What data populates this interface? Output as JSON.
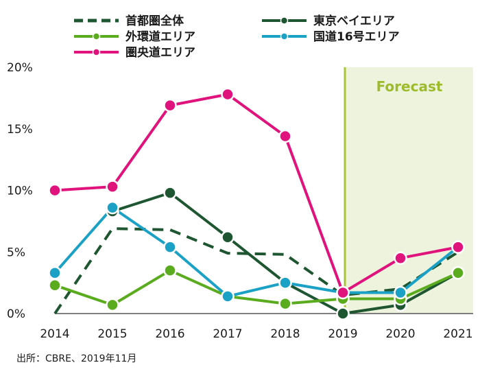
{
  "chart_data": {
    "type": "line",
    "categories": [
      "2014",
      "2015",
      "2016",
      "2017",
      "2018",
      "2019",
      "2020",
      "2021"
    ],
    "ylim": [
      0,
      20
    ],
    "yticks": [
      "0%",
      "5%",
      "10%",
      "15%",
      "20%"
    ],
    "ytick_values": [
      0,
      5,
      10,
      15,
      20
    ],
    "forecast_label": "Forecast",
    "forecast_start": "2019",
    "source": "出所：CBRE、2019年11月",
    "series": [
      {
        "name": "首都圏全体",
        "color": "#1e5631",
        "dashed": true,
        "markers": false,
        "values": [
          0.0,
          6.9,
          6.8,
          4.9,
          4.8,
          1.5,
          2.0,
          5.0
        ]
      },
      {
        "name": "東京ベイエリア",
        "color": "#1e5631",
        "dashed": false,
        "markers": true,
        "values": [
          null,
          8.3,
          9.8,
          6.2,
          2.5,
          0.0,
          0.7,
          3.3
        ]
      },
      {
        "name": "外環道エリア",
        "color": "#5aab1e",
        "dashed": false,
        "markers": true,
        "values": [
          2.3,
          0.7,
          3.5,
          1.4,
          0.8,
          1.2,
          1.2,
          3.3
        ]
      },
      {
        "name": "国道16号エリア",
        "color": "#1ba1c5",
        "dashed": false,
        "markers": true,
        "values": [
          3.3,
          8.6,
          5.4,
          1.4,
          2.5,
          1.7,
          1.7,
          5.4
        ]
      },
      {
        "name": "圏央道エリア",
        "color": "#e0137c",
        "dashed": false,
        "markers": true,
        "values": [
          10.0,
          10.3,
          16.9,
          17.8,
          14.4,
          1.7,
          4.5,
          5.4
        ]
      }
    ]
  }
}
